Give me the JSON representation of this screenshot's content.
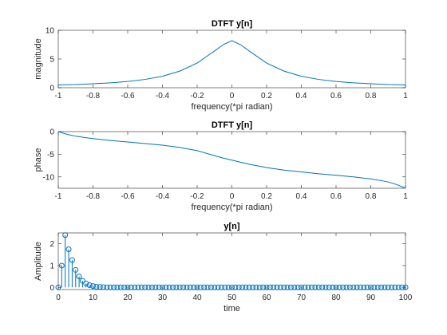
{
  "chart_data": [
    {
      "type": "line",
      "title": "DTFT y[n]",
      "xlabel": "frequency(*pi radian)",
      "ylabel": "magnitude",
      "xlim": [
        -1,
        1
      ],
      "ylim": [
        0,
        10
      ],
      "xticks": [
        "-1",
        "-0.8",
        "-0.6",
        "-0.4",
        "-0.2",
        "0",
        "0.2",
        "0.4",
        "0.6",
        "0.8",
        "1"
      ],
      "yticks": [
        "0",
        "5",
        "10"
      ],
      "color": "#0072BD",
      "x": [
        -1,
        -0.9,
        -0.8,
        -0.7,
        -0.6,
        -0.5,
        -0.4,
        -0.3,
        -0.2,
        -0.1,
        -0.05,
        0,
        0.05,
        0.1,
        0.2,
        0.3,
        0.4,
        0.5,
        0.6,
        0.7,
        0.8,
        0.9,
        1
      ],
      "y": [
        0.5,
        0.55,
        0.7,
        0.85,
        1.1,
        1.45,
        2.0,
        2.9,
        4.3,
        6.4,
        7.5,
        8.2,
        7.5,
        6.4,
        4.3,
        2.9,
        2.0,
        1.45,
        1.1,
        0.85,
        0.7,
        0.55,
        0.5
      ]
    },
    {
      "type": "line",
      "title": "DTFT y[n]",
      "xlabel": "frequency(*pi radian)",
      "ylabel": "phase",
      "xlim": [
        -1,
        1
      ],
      "ylim": [
        -12.5,
        0
      ],
      "xticks": [
        "-1",
        "-0.8",
        "-0.6",
        "-0.4",
        "-0.2",
        "0",
        "0.2",
        "0.4",
        "0.6",
        "0.8",
        "1"
      ],
      "yticks": [
        "0",
        "-5",
        "-10"
      ],
      "color": "#0072BD",
      "x": [
        -1,
        -0.95,
        -0.9,
        -0.85,
        -0.8,
        -0.7,
        -0.6,
        -0.5,
        -0.4,
        -0.3,
        -0.2,
        -0.1,
        -0.05,
        0,
        0.05,
        0.1,
        0.2,
        0.3,
        0.4,
        0.5,
        0.6,
        0.7,
        0.8,
        0.85,
        0.9,
        0.95,
        1
      ],
      "y": [
        0,
        -0.6,
        -1.0,
        -1.3,
        -1.55,
        -1.95,
        -2.3,
        -2.65,
        -3.0,
        -3.5,
        -4.2,
        -5.3,
        -5.85,
        -6.3,
        -6.75,
        -7.2,
        -7.95,
        -8.5,
        -8.9,
        -9.3,
        -9.65,
        -10.0,
        -10.45,
        -10.75,
        -11.1,
        -11.7,
        -12.5
      ]
    },
    {
      "type": "stem",
      "title": "y[n]",
      "xlabel": "time",
      "ylabel": "Amplitude",
      "xlim": [
        0,
        100
      ],
      "ylim": [
        -0.1,
        2.5
      ],
      "xticks": [
        "0",
        "10",
        "20",
        "30",
        "40",
        "50",
        "60",
        "70",
        "80",
        "90",
        "100"
      ],
      "yticks": [
        "0",
        "1",
        "2"
      ],
      "color": "#0072BD",
      "x": [
        0,
        1,
        2,
        3,
        4,
        5,
        6,
        7,
        8,
        9,
        10,
        11,
        12,
        13,
        14,
        15,
        16,
        17,
        18,
        19,
        20,
        21,
        22,
        23,
        24,
        25,
        26,
        27,
        28,
        29,
        30,
        31,
        32,
        33,
        34,
        35,
        36,
        37,
        38,
        39,
        40,
        41,
        42,
        43,
        44,
        45,
        46,
        47,
        48,
        49,
        50,
        51,
        52,
        53,
        54,
        55,
        56,
        57,
        58,
        59,
        60,
        61,
        62,
        63,
        64,
        65,
        66,
        67,
        68,
        69,
        70,
        71,
        72,
        73,
        74,
        75,
        76,
        77,
        78,
        79,
        80,
        81,
        82,
        83,
        84,
        85,
        86,
        87,
        88,
        89,
        90,
        91,
        92,
        93,
        94,
        95,
        96,
        97,
        98,
        99,
        100
      ],
      "y": [
        0,
        1.0,
        2.4,
        1.75,
        1.25,
        0.8,
        0.5,
        0.3,
        0.18,
        0.1,
        0.06,
        0.03,
        0.02,
        0.01,
        0,
        0,
        0,
        0,
        0,
        0,
        0,
        0,
        0,
        0,
        0,
        0,
        0,
        0,
        0,
        0,
        0,
        0,
        0,
        0,
        0,
        0,
        0,
        0,
        0,
        0,
        0,
        0,
        0,
        0,
        0,
        0,
        0,
        0,
        0,
        0,
        0,
        0,
        0,
        0,
        0,
        0,
        0,
        0,
        0,
        0,
        0,
        0,
        0,
        0,
        0,
        0,
        0,
        0,
        0,
        0,
        0,
        0,
        0,
        0,
        0,
        0,
        0,
        0,
        0,
        0,
        0,
        0,
        0,
        0,
        0,
        0,
        0,
        0,
        0,
        0,
        0,
        0,
        0,
        0,
        0,
        0,
        0,
        0,
        0,
        0,
        0
      ]
    }
  ]
}
